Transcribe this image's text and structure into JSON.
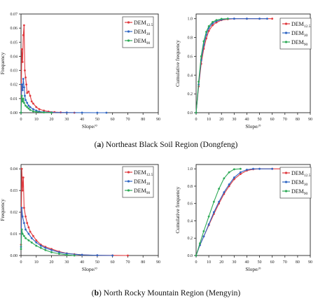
{
  "panels": [
    {
      "label": "a",
      "caption": "Northeast Black Soil Region (Dongfeng)"
    },
    {
      "label": "b",
      "caption": "North Rocky Mountain Region (Mengyin)"
    }
  ],
  "chart_data": [
    {
      "type": "line",
      "panel": "a-left",
      "ylabel": "Frequency",
      "xlabel": "Slope/°",
      "xlim": [
        0,
        90
      ],
      "ylim": [
        0,
        0.07
      ],
      "xticks": [
        0,
        10,
        20,
        30,
        40,
        50,
        60,
        70,
        80,
        90
      ],
      "yticks": [
        0.0,
        0.01,
        0.02,
        0.03,
        0.04,
        0.05,
        0.06,
        0.07
      ],
      "legend_position": "top-right",
      "series": [
        {
          "name": "DEM",
          "sub": "12.5",
          "color": "#e0393e",
          "x": [
            0,
            0.5,
            1,
            1.5,
            2,
            2.5,
            3,
            3.5,
            4,
            5,
            6,
            7,
            8,
            10,
            12,
            15,
            18,
            22,
            26,
            30,
            35
          ],
          "y": [
            0.0,
            0.045,
            0.036,
            0.055,
            0.062,
            0.03,
            0.025,
            0.02,
            0.014,
            0.015,
            0.012,
            0.008,
            0.0065,
            0.004,
            0.0025,
            0.0015,
            0.0008,
            0.0004,
            0.0002,
            0.0001,
            0.0
          ]
        },
        {
          "name": "DEM",
          "sub": "30",
          "color": "#2f66c4",
          "x": [
            0,
            0.5,
            1,
            1.5,
            2,
            2.5,
            3,
            4,
            5,
            6,
            8,
            10,
            12,
            15,
            20,
            30,
            40,
            50,
            56
          ],
          "y": [
            0.0,
            0.02,
            0.016,
            0.024,
            0.018,
            0.012,
            0.009,
            0.007,
            0.005,
            0.004,
            0.0025,
            0.0015,
            0.0008,
            0.0005,
            0.0002,
            0.0001,
            5e-05,
            0.0,
            0.0
          ]
        },
        {
          "name": "DEM",
          "sub": "90",
          "color": "#2eaa57",
          "x": [
            0,
            0.5,
            1,
            1.5,
            2,
            3,
            4,
            5,
            6,
            8,
            10,
            15,
            20
          ],
          "y": [
            0.0,
            0.012,
            0.008,
            0.01,
            0.007,
            0.005,
            0.004,
            0.003,
            0.002,
            0.001,
            0.0006,
            0.0002,
            0.0
          ]
        }
      ]
    },
    {
      "type": "line",
      "panel": "a-right",
      "ylabel": "Cumulative frequency",
      "xlabel": "Slope/°",
      "xlim": [
        0,
        90
      ],
      "ylim": [
        0,
        1.05
      ],
      "xticks": [
        0,
        10,
        20,
        30,
        40,
        50,
        60,
        70,
        80,
        90
      ],
      "yticks": [
        0.0,
        0.2,
        0.4,
        0.6,
        0.8,
        1.0
      ],
      "legend_position": "right",
      "series": [
        {
          "name": "DEM",
          "sub": "12.5",
          "color": "#e0393e",
          "x": [
            0,
            2,
            4,
            6,
            8,
            10,
            13,
            16,
            20,
            25,
            30,
            40,
            50,
            60
          ],
          "y": [
            0.0,
            0.28,
            0.52,
            0.68,
            0.79,
            0.87,
            0.93,
            0.96,
            0.985,
            0.995,
            1.0,
            1.0,
            1.0,
            1.0
          ]
        },
        {
          "name": "DEM",
          "sub": "30",
          "color": "#2f66c4",
          "x": [
            0,
            2,
            4,
            6,
            8,
            10,
            13,
            16,
            20,
            25,
            30,
            40,
            50,
            56
          ],
          "y": [
            0.0,
            0.3,
            0.56,
            0.72,
            0.83,
            0.9,
            0.95,
            0.975,
            0.99,
            1.0,
            1.0,
            1.0,
            1.0,
            1.0
          ]
        },
        {
          "name": "DEM",
          "sub": "90",
          "color": "#2eaa57",
          "x": [
            0,
            2,
            4,
            6,
            8,
            10,
            13,
            16,
            20,
            25
          ],
          "y": [
            0.0,
            0.33,
            0.6,
            0.76,
            0.86,
            0.92,
            0.965,
            0.985,
            0.998,
            1.0
          ]
        }
      ]
    },
    {
      "type": "line",
      "panel": "b-left",
      "ylabel": "Frequency",
      "xlabel": "Slope/°",
      "xlim": [
        0,
        90
      ],
      "ylim": [
        0,
        0.042
      ],
      "xticks": [
        0,
        10,
        20,
        30,
        40,
        50,
        60,
        70,
        80,
        90
      ],
      "yticks": [
        0.0,
        0.01,
        0.02,
        0.03,
        0.04
      ],
      "legend_position": "top-right",
      "series": [
        {
          "name": "DEM",
          "sub": "12.5",
          "color": "#e0393e",
          "x": [
            0,
            0.5,
            1,
            1.5,
            2,
            3,
            4,
            5,
            6,
            8,
            10,
            13,
            16,
            20,
            25,
            30,
            35,
            40,
            50,
            60,
            70
          ],
          "y": [
            0.005,
            0.04,
            0.03,
            0.036,
            0.022,
            0.018,
            0.015,
            0.013,
            0.011,
            0.009,
            0.007,
            0.005,
            0.004,
            0.003,
            0.0018,
            0.001,
            0.0006,
            0.0003,
            0.0001,
            5e-05,
            0.0
          ]
        },
        {
          "name": "DEM",
          "sub": "30",
          "color": "#2f66c4",
          "x": [
            0,
            0.5,
            1,
            2,
            3,
            5,
            7,
            10,
            13,
            16,
            20,
            25,
            30,
            40,
            50,
            60
          ],
          "y": [
            0.004,
            0.022,
            0.018,
            0.015,
            0.012,
            0.01,
            0.008,
            0.006,
            0.0045,
            0.0035,
            0.0025,
            0.0015,
            0.0009,
            0.0003,
            0.0001,
            0.0
          ]
        },
        {
          "name": "DEM",
          "sub": "90",
          "color": "#2eaa57",
          "x": [
            0,
            0.5,
            1,
            2,
            3,
            5,
            7,
            10,
            13,
            16,
            20,
            25,
            30,
            35
          ],
          "y": [
            0.003,
            0.012,
            0.01,
            0.009,
            0.008,
            0.007,
            0.006,
            0.0045,
            0.0035,
            0.0025,
            0.0015,
            0.0008,
            0.0003,
            0.0
          ]
        }
      ]
    },
    {
      "type": "line",
      "panel": "b-right",
      "ylabel": "Cumulative frequency",
      "xlabel": "Slope/°",
      "xlim": [
        0,
        90
      ],
      "ylim": [
        0,
        1.05
      ],
      "xticks": [
        0,
        10,
        20,
        30,
        40,
        50,
        60,
        70,
        80,
        90
      ],
      "yticks": [
        0.0,
        0.2,
        0.4,
        0.6,
        0.8,
        1.0
      ],
      "legend_position": "top-right",
      "series": [
        {
          "name": "DEM",
          "sub": "12.5",
          "color": "#e0393e",
          "x": [
            0,
            3,
            6,
            10,
            14,
            18,
            22,
            26,
            30,
            35,
            40,
            45,
            50,
            60,
            70
          ],
          "y": [
            0.0,
            0.12,
            0.22,
            0.35,
            0.48,
            0.6,
            0.71,
            0.8,
            0.88,
            0.94,
            0.98,
            0.995,
            1.0,
            1.0,
            1.0
          ]
        },
        {
          "name": "DEM",
          "sub": "30",
          "color": "#2f66c4",
          "x": [
            0,
            3,
            6,
            10,
            14,
            18,
            22,
            26,
            30,
            35,
            40,
            45,
            50,
            60
          ],
          "y": [
            0.0,
            0.12,
            0.22,
            0.36,
            0.5,
            0.62,
            0.73,
            0.82,
            0.9,
            0.96,
            0.99,
            1.0,
            1.0,
            1.0
          ]
        },
        {
          "name": "DEM",
          "sub": "90",
          "color": "#2eaa57",
          "x": [
            0,
            3,
            6,
            10,
            14,
            18,
            22,
            26,
            30,
            35
          ],
          "y": [
            0.0,
            0.14,
            0.28,
            0.45,
            0.62,
            0.77,
            0.89,
            0.96,
            0.995,
            1.0
          ]
        }
      ]
    }
  ]
}
